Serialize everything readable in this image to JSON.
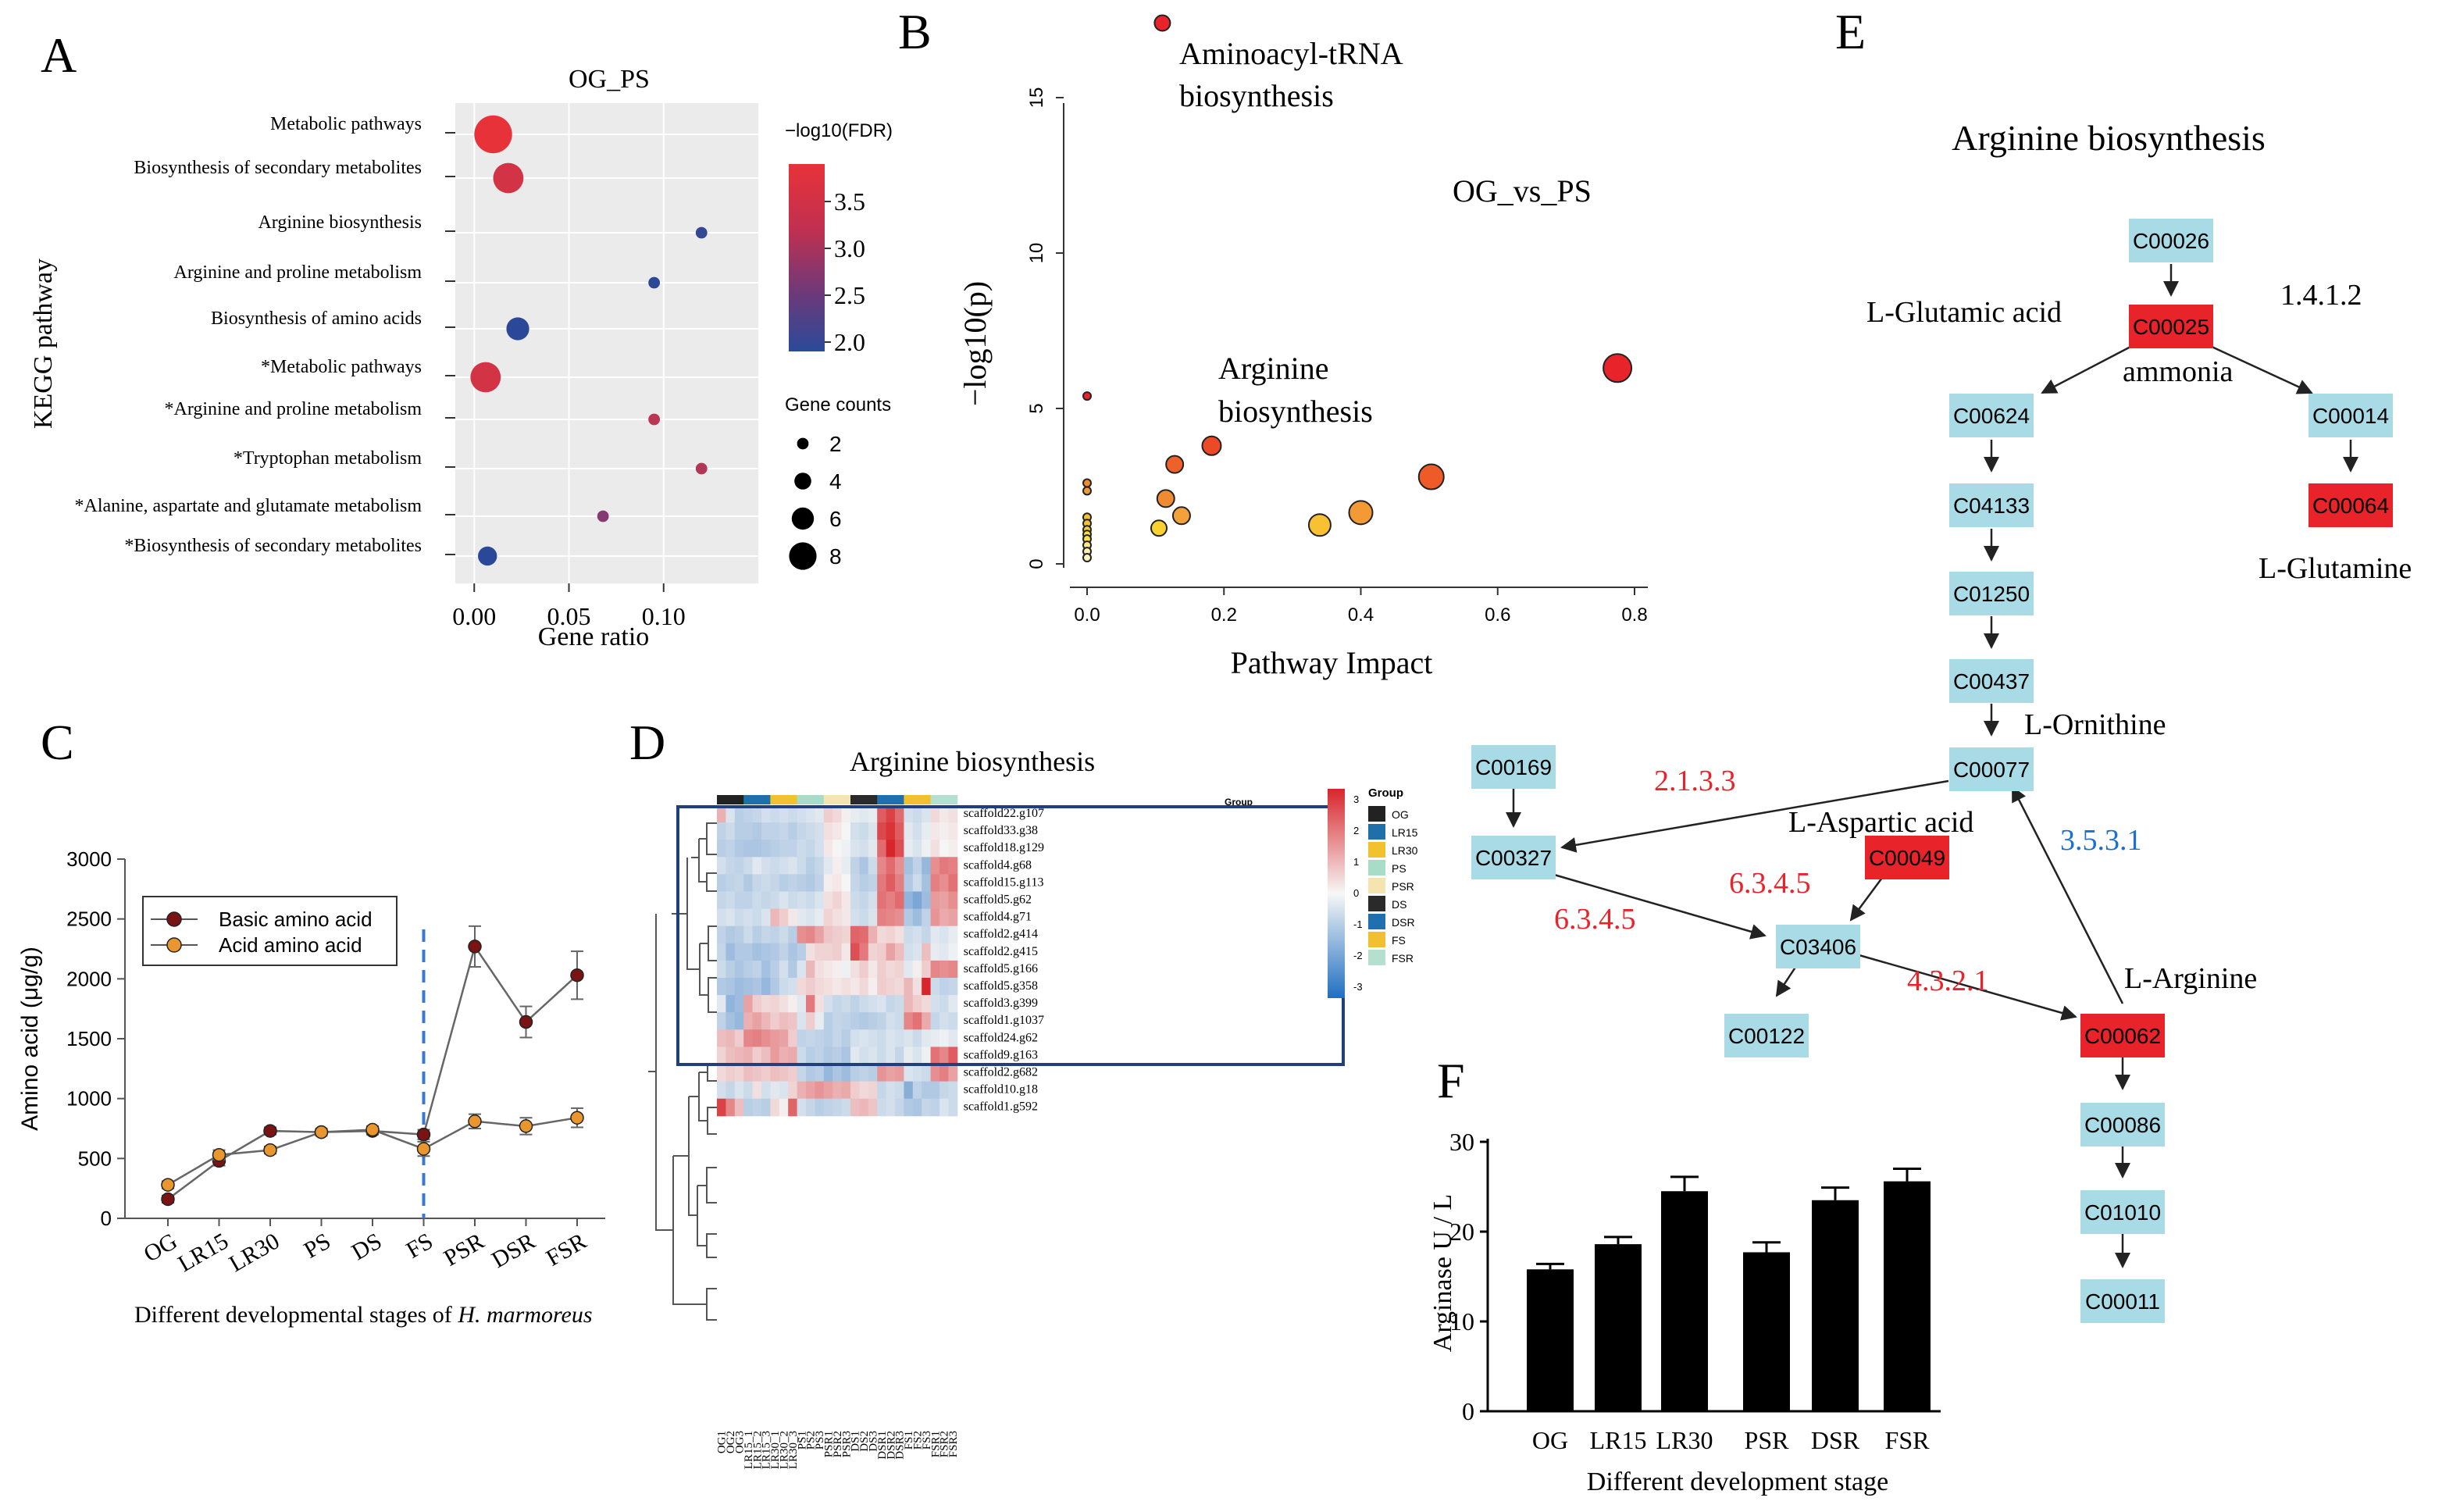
{
  "panel_letters": {
    "a": "A",
    "b": "B",
    "c": "C",
    "d": "D",
    "e": "E",
    "f": "F"
  },
  "colors": {
    "red": "#e8232a",
    "light_blue": "#a9dbe6",
    "navy": "#1f3f7f",
    "orange_light": "#f5c26b",
    "blue_num": "#1a6fd1"
  },
  "chart_data": [
    {
      "panel": "A",
      "type": "scatter",
      "title": "OG_PS",
      "xlabel": "Gene ratio",
      "ylabel": "KEGG pathway",
      "xlim": [
        -0.01,
        0.15
      ],
      "xticks": [
        "0.00",
        "0.05",
        "0.10"
      ],
      "color_legend": {
        "title": "−log10(FDR)",
        "ticks": [
          "3.5",
          "3.0",
          "2.5",
          "2.0"
        ],
        "range": [
          1.9,
          3.9
        ]
      },
      "size_legend": {
        "title": "Gene counts",
        "ticks": [
          "2",
          "4",
          "6",
          "8"
        ]
      },
      "points": [
        {
          "pathway": "Metabolic pathways",
          "ratio": 0.01,
          "fdr": 3.9,
          "count": 8
        },
        {
          "pathway": "Biosynthesis of secondary metabolites",
          "ratio": 0.018,
          "fdr": 3.7,
          "count": 6
        },
        {
          "pathway": "Arginine biosynthesis",
          "ratio": 0.12,
          "fdr": 2.1,
          "count": 1
        },
        {
          "pathway": "Arginine and proline metabolism",
          "ratio": 0.095,
          "fdr": 2.0,
          "count": 1
        },
        {
          "pathway": "Biosynthesis of amino acids",
          "ratio": 0.023,
          "fdr": 2.0,
          "count": 4
        },
        {
          "pathway": "*Metabolic pathways",
          "ratio": 0.006,
          "fdr": 3.7,
          "count": 6
        },
        {
          "pathway": "*Arginine and proline metabolism",
          "ratio": 0.095,
          "fdr": 3.5,
          "count": 1
        },
        {
          "pathway": "*Tryptophan metabolism",
          "ratio": 0.12,
          "fdr": 3.4,
          "count": 1
        },
        {
          "pathway": "*Alanine, aspartate and glutamate metabolism",
          "ratio": 0.068,
          "fdr": 3.0,
          "count": 1
        },
        {
          "pathway": "*Biosynthesis of secondary metabolites",
          "ratio": 0.007,
          "fdr": 2.0,
          "count": 3
        }
      ]
    },
    {
      "panel": "B",
      "type": "scatter",
      "title": "OG_vs_PS",
      "xlabel": "Pathway Impact",
      "ylabel": "−log10(p)",
      "xlim": [
        -0.02,
        0.82
      ],
      "ylim": [
        -0.3,
        17
      ],
      "xticks": [
        "0.0",
        "0.2",
        "0.4",
        "0.6",
        "0.8"
      ],
      "yticks": [
        "0",
        "5",
        "10",
        "15"
      ],
      "annotations": {
        "top": [
          "Aminoacyl-tRNA",
          "biosynthesis"
        ],
        "arginine": [
          "Arginine",
          "biosynthesis"
        ]
      },
      "points": [
        {
          "x": 0.11,
          "y": 17.4,
          "size": 10,
          "color": "#e8232a"
        },
        {
          "x": 0.775,
          "y": 6.3,
          "size": 18,
          "color": "#e8232a"
        },
        {
          "x": 0.503,
          "y": 2.8,
          "size": 16,
          "color": "#ee5a28"
        },
        {
          "x": 0.182,
          "y": 3.8,
          "size": 12,
          "color": "#ec4a26"
        },
        {
          "x": 0.128,
          "y": 3.2,
          "size": 11,
          "color": "#ee6229"
        },
        {
          "x": 0.4,
          "y": 1.65,
          "size": 15,
          "color": "#f39a35"
        },
        {
          "x": 0.34,
          "y": 1.25,
          "size": 14,
          "color": "#f7c132"
        },
        {
          "x": 0.138,
          "y": 1.55,
          "size": 11,
          "color": "#f4a13c"
        },
        {
          "x": 0.115,
          "y": 2.1,
          "size": 11,
          "color": "#f08a33"
        },
        {
          "x": 0.105,
          "y": 1.15,
          "size": 10,
          "color": "#fad230"
        },
        {
          "x": 0.0,
          "y": 5.4,
          "size": 5,
          "color": "#e8232a"
        },
        {
          "x": 0.0,
          "y": 2.6,
          "size": 5,
          "color": "#f08a33"
        },
        {
          "x": 0.0,
          "y": 2.35,
          "size": 5,
          "color": "#f39a35"
        },
        {
          "x": 0.0,
          "y": 1.5,
          "size": 5,
          "color": "#f7c132"
        },
        {
          "x": 0.0,
          "y": 1.3,
          "size": 5,
          "color": "#f7c132"
        },
        {
          "x": 0.0,
          "y": 1.1,
          "size": 5,
          "color": "#fad230"
        },
        {
          "x": 0.0,
          "y": 0.95,
          "size": 5,
          "color": "#fbe04a"
        },
        {
          "x": 0.0,
          "y": 0.8,
          "size": 5,
          "color": "#fbe04a"
        },
        {
          "x": 0.0,
          "y": 0.6,
          "size": 5,
          "color": "#fde98a"
        },
        {
          "x": 0.0,
          "y": 0.4,
          "size": 5,
          "color": "#fdf0b0"
        },
        {
          "x": 0.0,
          "y": 0.2,
          "size": 5,
          "color": "#fdf4c6"
        }
      ]
    },
    {
      "panel": "C",
      "type": "line",
      "xlabel": "Different developmental stages of",
      "xlabel_italic": "H. marmoreus",
      "ylabel": "Amino acid (μg/g)",
      "ylim": [
        0,
        3000
      ],
      "yticks": [
        "0",
        "500",
        "1000",
        "1500",
        "2000",
        "2500",
        "3000"
      ],
      "categories": [
        "OG",
        "LR15",
        "LR30",
        "PS",
        "DS",
        "FS",
        "PSR",
        "DSR",
        "FSR"
      ],
      "divider_after_category": "FS",
      "series": [
        {
          "name": "Basic amino acid",
          "values": [
            160,
            480,
            730,
            720,
            730,
            700,
            2270,
            1640,
            2030
          ],
          "errors": [
            30,
            40,
            30,
            30,
            30,
            40,
            170,
            130,
            200
          ]
        },
        {
          "name": "Acid amino acid",
          "values": [
            280,
            530,
            570,
            720,
            740,
            580,
            810,
            770,
            840
          ],
          "errors": [
            30,
            40,
            30,
            30,
            30,
            60,
            60,
            70,
            80
          ]
        }
      ]
    },
    {
      "panel": "D",
      "type": "heatmap",
      "title": "Arginine biosynthesis",
      "legend_title": "Group",
      "scale_ticks": [
        "3",
        "2",
        "1",
        "0",
        "-1",
        "-2",
        "-3"
      ],
      "groups": [
        {
          "name": "OG",
          "color": "#222222"
        },
        {
          "name": "LR15",
          "color": "#1f6fa8"
        },
        {
          "name": "LR30",
          "color": "#f2c12e"
        },
        {
          "name": "PS",
          "color": "#a9dbc9"
        },
        {
          "name": "PSR",
          "color": "#f6e4b0"
        },
        {
          "name": "DS",
          "color": "#2a2a2a"
        },
        {
          "name": "DSR",
          "color": "#2070b0"
        },
        {
          "name": "FS",
          "color": "#f0c030"
        },
        {
          "name": "FSR",
          "color": "#b5e0d0"
        }
      ],
      "columns": [
        "OG1",
        "OG2",
        "OG3",
        "LR15_1",
        "LR15_2",
        "LR15_3",
        "LR30_1",
        "LR30_2",
        "LR30_3",
        "PS1",
        "PS2",
        "PS3",
        "PSR1",
        "PSR2",
        "PSR3",
        "DS1",
        "DS2",
        "DS3",
        "DSR1",
        "DSR2",
        "DSR3",
        "FS1",
        "FS2",
        "FS3",
        "FSR1",
        "FSR2",
        "FSR3"
      ],
      "rows": [
        "scaffold22.g107",
        "scaffold33.g38",
        "scaffold18.g129",
        "scaffold4.g68",
        "scaffold15.g113",
        "scaffold5.g62",
        "scaffold4.g71",
        "scaffold2.g414",
        "scaffold2.g415",
        "scaffold5.g166",
        "scaffold5.g358",
        "scaffold3.g399",
        "scaffold1.g1037",
        "scaffold24.g62",
        "scaffold9.g163",
        "scaffold2.g682",
        "scaffold10.g18",
        "scaffold1.g592"
      ],
      "values": [
        [
          1.0,
          -0.4,
          -0.9,
          -0.8,
          -0.7,
          -0.5,
          -0.6,
          -0.5,
          -0.6,
          -0.5,
          -0.4,
          -0.3,
          0.6,
          0.4,
          0.1,
          -0.2,
          -0.3,
          -0.2,
          2.2,
          2.6,
          2.0,
          -0.5,
          -0.6,
          -0.4,
          0.4,
          0.2,
          0.3
        ],
        [
          -0.8,
          -0.6,
          -0.9,
          -0.9,
          -1.0,
          -0.8,
          -0.8,
          -0.7,
          -0.9,
          -0.7,
          -0.6,
          -0.5,
          0.3,
          0.2,
          0.0,
          -0.5,
          -0.6,
          -0.4,
          2.5,
          2.8,
          2.2,
          -0.3,
          -0.5,
          -0.2,
          0.2,
          0.1,
          0.2
        ],
        [
          -0.9,
          -0.8,
          -1.0,
          -1.1,
          -1.1,
          -1.0,
          -0.9,
          -0.8,
          -0.8,
          -0.6,
          -0.7,
          -0.5,
          0.2,
          0.0,
          -0.1,
          -0.4,
          -0.5,
          -0.3,
          2.0,
          3.0,
          2.4,
          -0.2,
          -0.4,
          -0.1,
          0.3,
          0.0,
          0.1
        ],
        [
          -0.5,
          -0.7,
          -0.8,
          -0.6,
          -0.3,
          -0.5,
          -0.6,
          -0.5,
          -0.4,
          -0.6,
          -0.9,
          -0.7,
          -0.3,
          0.1,
          -0.2,
          -0.8,
          -1.1,
          -0.6,
          1.6,
          2.0,
          1.5,
          -1.2,
          -0.8,
          -1.4,
          1.5,
          1.8,
          1.7
        ],
        [
          -0.9,
          -0.8,
          -0.7,
          -1.0,
          -0.7,
          -0.6,
          -0.7,
          -0.9,
          -0.8,
          -0.9,
          -1.0,
          -0.8,
          0.1,
          0.2,
          0.0,
          -0.7,
          -0.9,
          -0.8,
          1.8,
          2.2,
          1.7,
          -1.0,
          -0.6,
          -1.2,
          1.7,
          1.5,
          1.9
        ],
        [
          -0.7,
          -0.6,
          -0.8,
          -0.8,
          -0.6,
          -0.7,
          -0.6,
          -0.4,
          -0.6,
          -0.5,
          -0.6,
          -0.4,
          0.3,
          0.5,
          0.2,
          -0.6,
          -0.7,
          -0.5,
          1.9,
          1.7,
          2.0,
          -1.5,
          -1.8,
          -1.3,
          1.3,
          1.2,
          1.5
        ],
        [
          -0.5,
          -0.4,
          -0.6,
          -0.5,
          -0.6,
          -0.4,
          0.9,
          0.6,
          0.2,
          -0.3,
          -0.4,
          -0.2,
          0.5,
          0.3,
          0.2,
          -0.5,
          -0.6,
          -0.4,
          1.7,
          1.6,
          1.5,
          -1.0,
          -1.3,
          -0.8,
          1.4,
          1.1,
          1.2
        ],
        [
          -0.8,
          -1.0,
          -0.9,
          -0.6,
          -0.9,
          -0.7,
          -0.8,
          -0.6,
          -0.9,
          1.5,
          1.6,
          1.2,
          0.7,
          0.6,
          0.5,
          2.1,
          2.0,
          1.0,
          0.4,
          0.5,
          0.3,
          -0.6,
          -0.5,
          -0.7,
          -0.3,
          -0.4,
          -0.2
        ],
        [
          -0.7,
          -1.3,
          -1.0,
          -1.0,
          -1.2,
          -1.1,
          -1.0,
          -0.8,
          -1.1,
          -0.9,
          0.3,
          0.5,
          0.5,
          0.6,
          0.2,
          2.4,
          1.8,
          0.5,
          0.6,
          1.2,
          0.8,
          -0.5,
          -0.4,
          0.8,
          -0.2,
          -0.3,
          -0.1
        ],
        [
          -0.6,
          -0.9,
          -1.1,
          -0.9,
          -0.8,
          -1.2,
          -0.9,
          -0.5,
          -1.0,
          -0.4,
          0.9,
          0.3,
          0.2,
          0.1,
          -0.1,
          0.3,
          0.6,
          0.2,
          0.6,
          0.4,
          0.5,
          -0.3,
          0.1,
          0.6,
          1.6,
          1.5,
          1.6
        ],
        [
          -1.0,
          -1.1,
          -1.3,
          -1.2,
          -1.1,
          -1.4,
          -1.0,
          -0.6,
          -0.5,
          0.4,
          0.6,
          0.4,
          0.3,
          0.2,
          0.3,
          0.2,
          0.4,
          0.1,
          0.6,
          0.5,
          0.4,
          0.9,
          0.3,
          3.0,
          -0.6,
          -0.8,
          -0.7
        ],
        [
          -0.3,
          -1.5,
          -1.3,
          1.2,
          0.6,
          0.4,
          0.5,
          0.3,
          0.1,
          -0.3,
          1.8,
          0.3,
          -0.5,
          -0.7,
          -0.6,
          -0.8,
          -0.6,
          -0.5,
          -0.4,
          -0.7,
          -0.6,
          0.9,
          0.6,
          0.4,
          -0.5,
          -0.6,
          -0.3
        ],
        [
          -0.8,
          -1.2,
          -1.4,
          1.0,
          1.2,
          0.9,
          0.6,
          0.8,
          0.7,
          -0.4,
          0.6,
          -0.2,
          -0.9,
          -0.7,
          -0.8,
          -0.9,
          -1.0,
          -0.9,
          -0.8,
          -0.5,
          -0.6,
          1.6,
          1.9,
          1.1,
          -0.7,
          -0.5,
          -0.6
        ],
        [
          0.8,
          0.9,
          0.6,
          1.6,
          1.7,
          1.5,
          1.3,
          1.2,
          0.6,
          -0.8,
          -0.7,
          -0.8,
          -0.9,
          -0.7,
          -0.9,
          -0.5,
          -0.4,
          -0.5,
          -0.6,
          -0.4,
          -0.5,
          -0.4,
          -0.6,
          -0.3,
          -0.2,
          -0.1,
          -0.3
        ],
        [
          0.5,
          0.8,
          0.9,
          1.0,
          0.6,
          0.8,
          1.3,
          1.0,
          1.1,
          -0.6,
          -0.9,
          -0.8,
          -1.0,
          -0.9,
          -1.1,
          -0.3,
          -0.5,
          -0.4,
          -0.6,
          -0.4,
          -0.7,
          -0.2,
          -0.4,
          -0.1,
          1.9,
          1.6,
          2.2
        ],
        [
          0.4,
          0.6,
          0.5,
          0.8,
          0.7,
          0.6,
          0.8,
          0.7,
          0.6,
          -0.7,
          -1.0,
          -0.9,
          -1.4,
          -1.1,
          -1.3,
          -0.9,
          -0.8,
          -0.9,
          1.4,
          1.2,
          1.3,
          -0.4,
          -0.5,
          -0.6,
          1.5,
          1.7,
          1.2
        ],
        [
          -0.5,
          -0.7,
          -0.4,
          -0.6,
          0.3,
          -0.5,
          -0.3,
          -0.4,
          0.5,
          1.0,
          1.2,
          1.4,
          1.2,
          1.0,
          1.1,
          0.6,
          0.4,
          0.5,
          -0.7,
          -0.5,
          -0.6,
          -1.6,
          -0.8,
          -1.0,
          -1.0,
          -0.7,
          -0.6
        ],
        [
          2.6,
          1.6,
          0.8,
          -0.9,
          -0.8,
          -0.9,
          0.4,
          0.1,
          2.1,
          -0.5,
          -0.7,
          -0.9,
          -0.8,
          -0.7,
          -0.6,
          0.8,
          0.9,
          0.7,
          -0.6,
          -0.5,
          -0.7,
          -1.0,
          -1.1,
          -0.7,
          -0.8,
          -0.4,
          -0.6
        ]
      ]
    },
    {
      "panel": "F",
      "type": "bar",
      "xlabel": "Different development stage",
      "ylabel": "Arginase U / L",
      "ylim": [
        0,
        30
      ],
      "yticks": [
        "0",
        "10",
        "20",
        "30"
      ],
      "categories": [
        "OG",
        "LR15",
        "LR30",
        "PSR",
        "DSR",
        "FSR"
      ],
      "values": [
        15.8,
        18.6,
        24.5,
        17.7,
        23.5,
        25.6
      ],
      "errors": [
        0.6,
        0.8,
        1.6,
        1.1,
        1.4,
        1.4
      ]
    }
  ],
  "pathway_e": {
    "title": "Arginine biosynthesis",
    "nodes": [
      {
        "id": "C00026",
        "color": "light"
      },
      {
        "id": "C00025",
        "color": "red"
      },
      {
        "id": "C00624",
        "color": "light"
      },
      {
        "id": "C00014",
        "color": "light"
      },
      {
        "id": "C04133",
        "color": "light"
      },
      {
        "id": "C00064",
        "color": "red"
      },
      {
        "id": "C01250",
        "color": "light"
      },
      {
        "id": "C00437",
        "color": "light"
      },
      {
        "id": "C00077",
        "color": "light"
      },
      {
        "id": "C00169",
        "color": "light"
      },
      {
        "id": "C00327",
        "color": "light"
      },
      {
        "id": "C00049",
        "color": "red"
      },
      {
        "id": "C03406",
        "color": "light"
      },
      {
        "id": "C00122",
        "color": "light"
      },
      {
        "id": "C00062",
        "color": "red"
      },
      {
        "id": "C00086",
        "color": "light"
      },
      {
        "id": "C01010",
        "color": "light"
      },
      {
        "id": "C00011",
        "color": "light"
      }
    ],
    "labels": {
      "glutamic": "L-Glutamic acid",
      "ammonia": "ammonia",
      "glutamine": "L-Glutamine",
      "ornithine": "L-Ornithine",
      "aspartic": "L-Aspartic acid",
      "arginine": "L-Arginine"
    },
    "enzymes": {
      "e1": "1.4.1.2",
      "e2": "2.1.3.3",
      "e3": "6.3.4.5",
      "e4": "6.3.4.5",
      "e5": "4.3.2.1",
      "e6": "3.5.3.1"
    }
  }
}
